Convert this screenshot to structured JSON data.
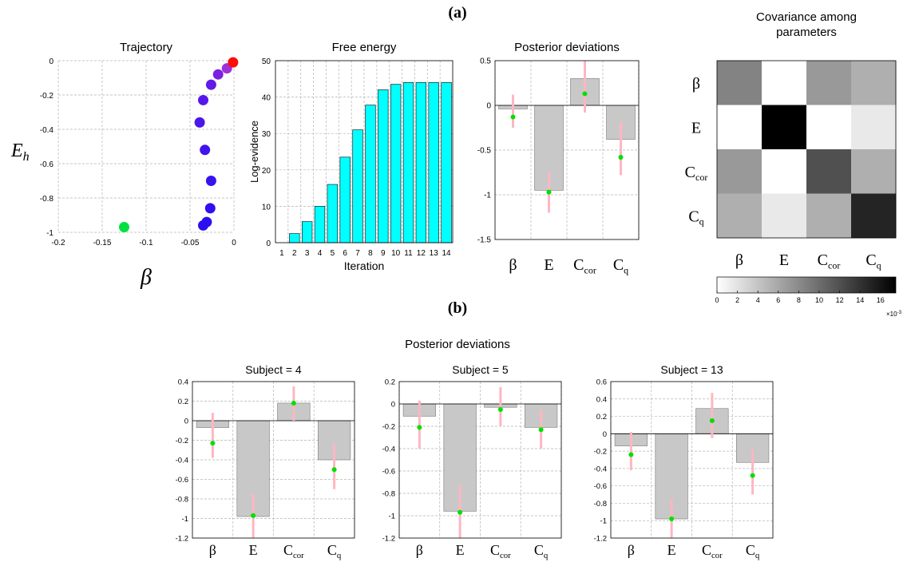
{
  "panel_labels": {
    "a": "(a)",
    "b": "(b)"
  },
  "section_b_title": "Posterior deviations",
  "param_labels": [
    "β",
    "E",
    "C",
    "C"
  ],
  "param_subscripts": [
    "",
    "",
    "cor",
    "q"
  ],
  "colors": {
    "bar": "#c8c8c8",
    "error": "#ffb6c1",
    "estimate": "#00e000",
    "energy_bar": "#00ffff",
    "grid": "#b4b4b4"
  },
  "chart_data": [
    {
      "type": "scatter",
      "title": "Trajectory",
      "xlabel": "β",
      "ylabel_main": "E",
      "ylabel_sub": "h",
      "xlim": [
        -0.2,
        0
      ],
      "ylim": [
        -1,
        0
      ],
      "x_ticks": [
        "-0.2",
        "-0.15",
        "-0.1",
        "-0.05",
        "0"
      ],
      "y_ticks": [
        "0",
        "-0.2",
        "-0.4",
        "-0.6",
        "-0.8",
        "-1"
      ],
      "points": [
        {
          "x": -0.125,
          "y": -0.97,
          "color": "#00e040"
        },
        {
          "x": -0.035,
          "y": -0.96,
          "color": "#2a10f0"
        },
        {
          "x": -0.031,
          "y": -0.94,
          "color": "#2a10f0"
        },
        {
          "x": -0.027,
          "y": -0.86,
          "color": "#3010f0"
        },
        {
          "x": -0.026,
          "y": -0.7,
          "color": "#3812ee"
        },
        {
          "x": -0.033,
          "y": -0.52,
          "color": "#4014ec"
        },
        {
          "x": -0.039,
          "y": -0.36,
          "color": "#4a16ea"
        },
        {
          "x": -0.035,
          "y": -0.23,
          "color": "#5518e8"
        },
        {
          "x": -0.026,
          "y": -0.14,
          "color": "#621ae6"
        },
        {
          "x": -0.018,
          "y": -0.08,
          "color": "#7a20e2"
        },
        {
          "x": -0.008,
          "y": -0.045,
          "color": "#a030d8"
        },
        {
          "x": -0.001,
          "y": -0.01,
          "color": "#ff0a0a"
        }
      ]
    },
    {
      "type": "bar",
      "title": "Free energy",
      "xlabel": "Iteration",
      "ylabel": "Log-evidence",
      "ylim": [
        0,
        50
      ],
      "y_ticks": [
        "0",
        "10",
        "20",
        "30",
        "40",
        "50"
      ],
      "categories": [
        "1",
        "2",
        "3",
        "4",
        "5",
        "6",
        "7",
        "8",
        "9",
        "10",
        "11",
        "12",
        "13",
        "14"
      ],
      "values": [
        0,
        2.5,
        5.8,
        10,
        16,
        23.5,
        31,
        37.8,
        42,
        43.5,
        44,
        44,
        44,
        44
      ]
    },
    {
      "type": "bar",
      "title": "Posterior deviations",
      "ylim": [
        -1.5,
        0.5
      ],
      "y_ticks": [
        "0.5",
        "0",
        "-0.5",
        "-1",
        "-1.5"
      ],
      "values": [
        -0.04,
        -0.95,
        0.3,
        -0.38
      ],
      "estimates": [
        -0.13,
        -0.97,
        0.13,
        -0.58
      ],
      "err_low": [
        -0.25,
        -1.2,
        -0.08,
        -0.78
      ],
      "err_high": [
        0.12,
        -0.75,
        0.5,
        -0.18
      ]
    },
    {
      "type": "heatmap",
      "title_lines": [
        "Covariance among",
        "parameters"
      ],
      "matrix": [
        [
          0.0085,
          0.0,
          0.007,
          0.0055
        ],
        [
          0.0,
          0.0175,
          0.0,
          0.0015
        ],
        [
          0.007,
          0.0,
          0.012,
          0.0055
        ],
        [
          0.0055,
          0.0015,
          0.0055,
          0.015
        ]
      ],
      "clim": [
        0,
        0.0175
      ],
      "colorbar_ticks": [
        "0",
        "2",
        "4",
        "6",
        "8",
        "10",
        "12",
        "14",
        "16"
      ],
      "colorbar_multiplier": "×10",
      "colorbar_exponent": "-3"
    },
    {
      "type": "bar",
      "title": "Subject = 4",
      "ylim": [
        -1.2,
        0.4
      ],
      "y_ticks": [
        "0.4",
        "0.2",
        "0",
        "-0.2",
        "-0.4",
        "-0.6",
        "-0.8",
        "-1",
        "-1.2"
      ],
      "values": [
        -0.07,
        -0.98,
        0.18,
        -0.4
      ],
      "estimates": [
        -0.23,
        -0.97,
        0.18,
        -0.5
      ],
      "err_low": [
        -0.38,
        -1.2,
        0.0,
        -0.7
      ],
      "err_high": [
        0.08,
        -0.75,
        0.35,
        -0.23
      ]
    },
    {
      "type": "bar",
      "title": "Subject = 5",
      "ylim": [
        -1.2,
        0.2
      ],
      "y_ticks": [
        "0.2",
        "0",
        "-0.2",
        "-0.4",
        "-0.6",
        "-0.8",
        "-1",
        "-1.2"
      ],
      "values": [
        -0.11,
        -0.96,
        -0.03,
        -0.21
      ],
      "estimates": [
        -0.21,
        -0.97,
        -0.05,
        -0.23
      ],
      "err_low": [
        -0.4,
        -1.2,
        -0.2,
        -0.4
      ],
      "err_high": [
        0.03,
        -0.73,
        0.15,
        -0.05
      ]
    },
    {
      "type": "bar",
      "title": "Subject = 13",
      "ylim": [
        -1.2,
        0.6
      ],
      "y_ticks": [
        "0.6",
        "0.4",
        "0.2",
        "0",
        "-0.2",
        "-0.4",
        "-0.6",
        "-0.8",
        "-1",
        "-1.2"
      ],
      "values": [
        -0.14,
        -0.98,
        0.29,
        -0.33
      ],
      "estimates": [
        -0.24,
        -0.98,
        0.15,
        -0.48
      ],
      "err_low": [
        -0.42,
        -1.2,
        -0.05,
        -0.7
      ],
      "err_high": [
        0.02,
        -0.75,
        0.47,
        -0.18
      ]
    }
  ]
}
